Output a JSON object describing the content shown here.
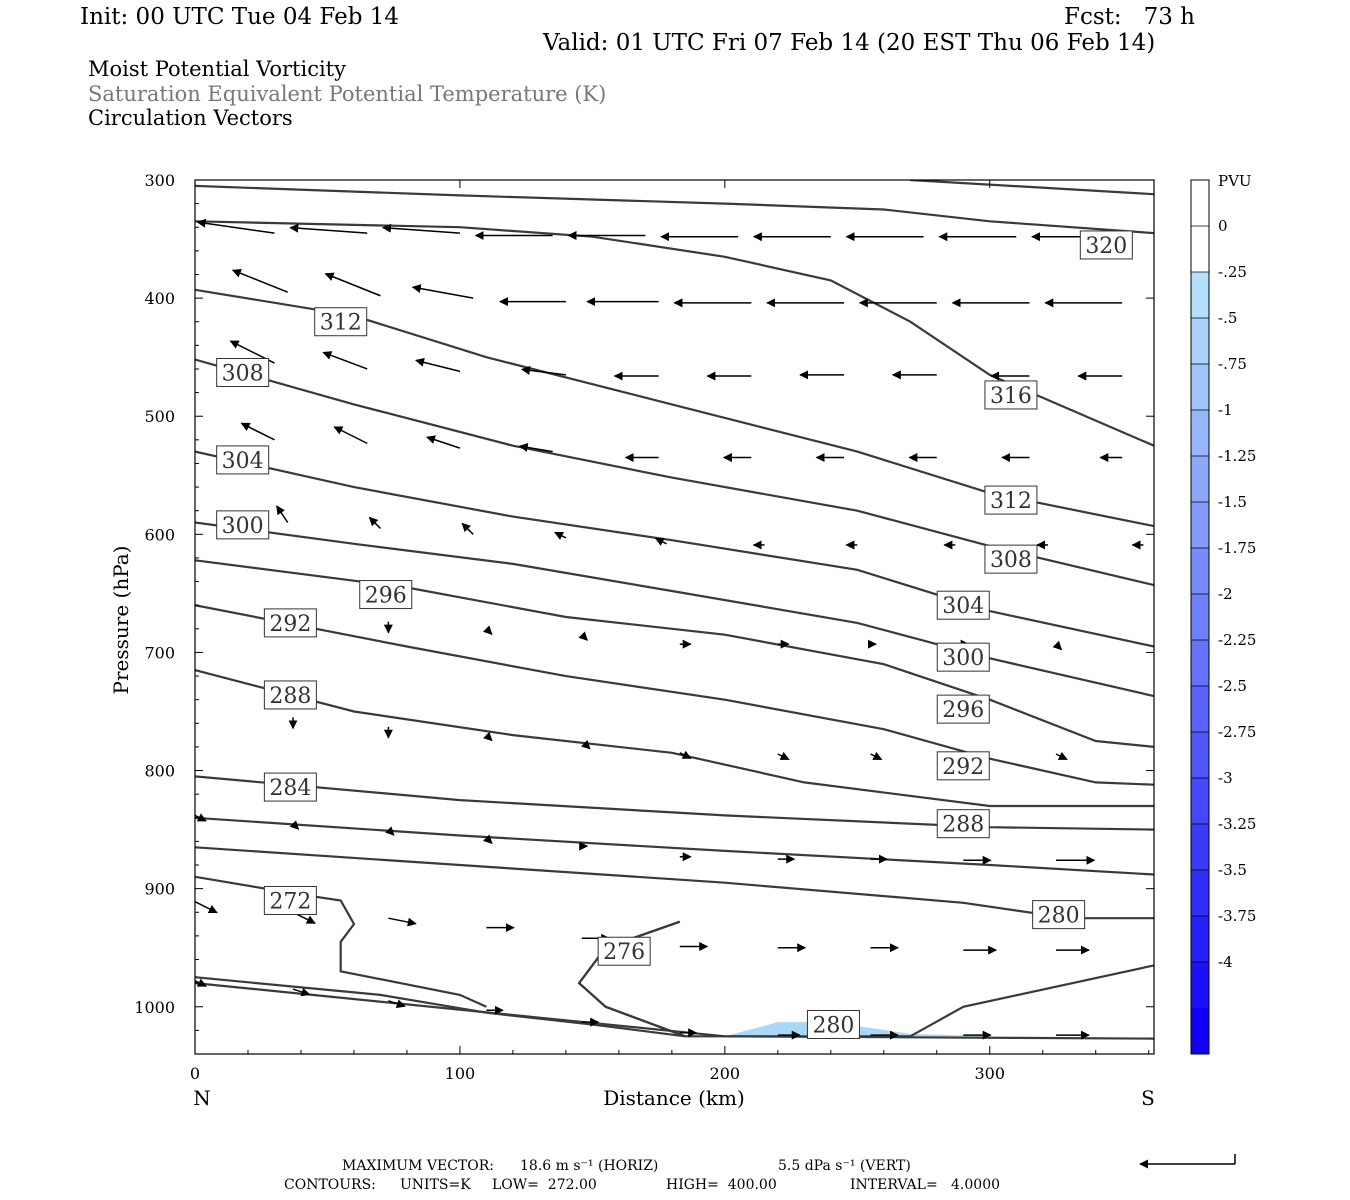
{
  "header": {
    "init": "Init: 00 UTC Tue 04 Feb 14",
    "fcst": "Fcst:   73 h",
    "valid": "Valid: 01 UTC Fri 07 Feb 14 (20 EST Thu 06 Feb 14)"
  },
  "legend": {
    "line1": "Moist Potential Vorticity",
    "line2": "Saturation Equivalent Potential Temperature (K)",
    "line3": "Circulation Vectors"
  },
  "footer": {
    "maxvec_label": "MAXIMUM VECTOR:",
    "horiz": "18.6 m s⁻¹ (HORIZ)",
    "vert": "5.5 dPa s⁻¹ (VERT)",
    "contours_label": "CONTOURS:",
    "units": "UNITS=K",
    "low": "LOW=  272.00",
    "high": "HIGH=  400.00",
    "interval": "INTERVAL=   4.0000"
  },
  "colors": {
    "contour": "#3a3a3a",
    "vector": "#000000",
    "pv_fill": "#a8d8f8"
  },
  "chart_data": {
    "type": "cross-section",
    "xlabel": "Distance (km)",
    "ylabel": "Pressure (hPa)",
    "x_ticks": [
      0,
      100,
      200,
      300
    ],
    "y_ticks": [
      300,
      400,
      500,
      600,
      700,
      800,
      900,
      1000
    ],
    "xlim": [
      0,
      362
    ],
    "ylim": [
      1040,
      300
    ],
    "end_labels": {
      "left": "N",
      "right": "S"
    },
    "colorbar": {
      "title": "PVU",
      "levels": [
        "0",
        "-.25",
        "-.5",
        "-.75",
        "-1",
        "-1.25",
        "-1.5",
        "-1.75",
        "-2",
        "-2.25",
        "-2.5",
        "-2.75",
        "-3",
        "-3.25",
        "-3.5",
        "-3.75",
        "-4"
      ],
      "colors": [
        "#ffffff",
        "#ffffff",
        "#b4e0fc",
        "#aad2fb",
        "#a0c5fb",
        "#96b7fb",
        "#8ca8fb",
        "#829bfb",
        "#778cfb",
        "#6d7ffb",
        "#6371fb",
        "#5963fb",
        "#4e55fb",
        "#4447fb",
        "#3a3afb",
        "#302cfb",
        "#251ffb",
        "#1a10fb",
        "#0f00fb"
      ]
    },
    "contours": [
      {
        "value": "",
        "points": [
          [
            270,
            300
          ],
          [
            362,
            312
          ]
        ]
      },
      {
        "value": "320",
        "points": [
          [
            0,
            305
          ],
          [
            100,
            313
          ],
          [
            200,
            320
          ],
          [
            260,
            325
          ],
          [
            300,
            335
          ],
          [
            362,
            345
          ]
        ]
      },
      {
        "value": "316",
        "points": [
          [
            0,
            335
          ],
          [
            100,
            340
          ],
          [
            150,
            348
          ],
          [
            200,
            365
          ],
          [
            240,
            385
          ],
          [
            270,
            420
          ],
          [
            300,
            465
          ],
          [
            362,
            525
          ]
        ]
      },
      {
        "value": "312",
        "points": [
          [
            0,
            393
          ],
          [
            60,
            415
          ],
          [
            110,
            450
          ],
          [
            180,
            490
          ],
          [
            250,
            530
          ],
          [
            300,
            565
          ],
          [
            362,
            593
          ]
        ]
      },
      {
        "value": "308",
        "points": [
          [
            0,
            452
          ],
          [
            60,
            490
          ],
          [
            120,
            525
          ],
          [
            180,
            552
          ],
          [
            250,
            580
          ],
          [
            300,
            610
          ],
          [
            362,
            643
          ]
        ]
      },
      {
        "value": "304",
        "points": [
          [
            0,
            530
          ],
          [
            60,
            560
          ],
          [
            120,
            585
          ],
          [
            180,
            605
          ],
          [
            250,
            630
          ],
          [
            300,
            665
          ],
          [
            362,
            695
          ]
        ]
      },
      {
        "value": "300",
        "points": [
          [
            0,
            590
          ],
          [
            60,
            608
          ],
          [
            120,
            625
          ],
          [
            180,
            648
          ],
          [
            250,
            675
          ],
          [
            300,
            705
          ],
          [
            362,
            737
          ]
        ]
      },
      {
        "value": "296",
        "points": [
          [
            0,
            622
          ],
          [
            80,
            645
          ],
          [
            140,
            670
          ],
          [
            200,
            685
          ],
          [
            260,
            710
          ],
          [
            300,
            740
          ],
          [
            340,
            775
          ],
          [
            362,
            780
          ]
        ]
      },
      {
        "value": "292",
        "points": [
          [
            0,
            660
          ],
          [
            80,
            695
          ],
          [
            140,
            720
          ],
          [
            200,
            740
          ],
          [
            260,
            765
          ],
          [
            300,
            790
          ],
          [
            340,
            810
          ],
          [
            362,
            812
          ]
        ]
      },
      {
        "value": "288",
        "points": [
          [
            0,
            715
          ],
          [
            60,
            750
          ],
          [
            120,
            770
          ],
          [
            180,
            785
          ],
          [
            230,
            810
          ],
          [
            300,
            830
          ],
          [
            362,
            830
          ]
        ]
      },
      {
        "value": "284",
        "points": [
          [
            0,
            805
          ],
          [
            100,
            825
          ],
          [
            200,
            838
          ],
          [
            300,
            848
          ],
          [
            362,
            850
          ]
        ]
      },
      {
        "value": "",
        "points": [
          [
            0,
            840
          ],
          [
            100,
            855
          ],
          [
            200,
            868
          ],
          [
            300,
            880
          ],
          [
            362,
            888
          ]
        ]
      },
      {
        "value": "280",
        "points": [
          [
            0,
            865
          ],
          [
            100,
            880
          ],
          [
            200,
            895
          ],
          [
            290,
            912
          ],
          [
            330,
            925
          ],
          [
            362,
            925
          ]
        ]
      },
      {
        "value": "272",
        "points": [
          [
            0,
            890
          ],
          [
            40,
            905
          ],
          [
            55,
            910
          ],
          [
            60,
            930
          ],
          [
            55,
            945
          ],
          [
            55,
            970
          ],
          [
            100,
            990
          ],
          [
            110,
            1000
          ]
        ]
      },
      {
        "value": "276",
        "points": [
          [
            0,
            975
          ],
          [
            70,
            990
          ],
          [
            110,
            1005
          ],
          [
            150,
            1015
          ],
          [
            185,
            1025
          ]
        ]
      },
      {
        "value": "",
        "points": [
          [
            183,
            928
          ],
          [
            155,
            950
          ],
          [
            145,
            980
          ],
          [
            155,
            1000
          ],
          [
            185,
            1025
          ]
        ]
      },
      {
        "value": "",
        "points": [
          [
            183,
            928
          ],
          [
            155,
            950
          ],
          [
            145,
            980
          ],
          [
            155,
            1000
          ],
          [
            185,
            1025
          ],
          [
            270,
            1025
          ],
          [
            290,
            1000
          ],
          [
            362,
            965
          ]
        ]
      },
      {
        "value": "",
        "points": [
          [
            0,
            980
          ],
          [
            200,
            1025
          ],
          [
            362,
            1027
          ]
        ]
      }
    ],
    "contour_labels": [
      {
        "text": "320",
        "x": 344,
        "y": 355
      },
      {
        "text": "312",
        "x": 55,
        "y": 420
      },
      {
        "text": "308",
        "x": 18,
        "y": 463
      },
      {
        "text": "316",
        "x": 308,
        "y": 482
      },
      {
        "text": "304",
        "x": 18,
        "y": 537
      },
      {
        "text": "312",
        "x": 308,
        "y": 571
      },
      {
        "text": "300",
        "x": 18,
        "y": 592
      },
      {
        "text": "308",
        "x": 308,
        "y": 621
      },
      {
        "text": "296",
        "x": 72,
        "y": 651
      },
      {
        "text": "304",
        "x": 290,
        "y": 660
      },
      {
        "text": "292",
        "x": 36,
        "y": 675
      },
      {
        "text": "300",
        "x": 290,
        "y": 704
      },
      {
        "text": "288",
        "x": 36,
        "y": 736
      },
      {
        "text": "296",
        "x": 290,
        "y": 748
      },
      {
        "text": "292",
        "x": 290,
        "y": 796
      },
      {
        "text": "284",
        "x": 36,
        "y": 814
      },
      {
        "text": "288",
        "x": 290,
        "y": 845
      },
      {
        "text": "272",
        "x": 36,
        "y": 910
      },
      {
        "text": "280",
        "x": 326,
        "y": 922
      },
      {
        "text": "276",
        "x": 162,
        "y": 953
      },
      {
        "text": "280",
        "x": 241,
        "y": 1015
      }
    ],
    "pv_region": [
      [
        200,
        1025
      ],
      [
        220,
        1013
      ],
      [
        240,
        1013
      ],
      [
        270,
        1023
      ],
      [
        300,
        1025
      ]
    ],
    "vectors": [
      {
        "x": 30,
        "y": 345,
        "u": -14,
        "v": 2
      },
      {
        "x": 65,
        "y": 345,
        "u": -14,
        "v": 1
      },
      {
        "x": 100,
        "y": 345,
        "u": -14,
        "v": 1
      },
      {
        "x": 135,
        "y": 347,
        "u": -14,
        "v": 0
      },
      {
        "x": 170,
        "y": 347,
        "u": -14,
        "v": 0
      },
      {
        "x": 205,
        "y": 348,
        "u": -14,
        "v": 0
      },
      {
        "x": 240,
        "y": 348,
        "u": -14,
        "v": 0
      },
      {
        "x": 275,
        "y": 348,
        "u": -14,
        "v": 0
      },
      {
        "x": 310,
        "y": 348,
        "u": -14,
        "v": 0
      },
      {
        "x": 345,
        "y": 348,
        "u": -14,
        "v": 0
      },
      {
        "x": 35,
        "y": 395,
        "u": -10,
        "v": 4
      },
      {
        "x": 70,
        "y": 398,
        "u": -10,
        "v": 4
      },
      {
        "x": 105,
        "y": 400,
        "u": -11,
        "v": 2
      },
      {
        "x": 140,
        "y": 403,
        "u": -12,
        "v": 0
      },
      {
        "x": 175,
        "y": 403,
        "u": -13,
        "v": 0
      },
      {
        "x": 210,
        "y": 404,
        "u": -14,
        "v": 0
      },
      {
        "x": 245,
        "y": 404,
        "u": -14,
        "v": 0
      },
      {
        "x": 280,
        "y": 404,
        "u": -14,
        "v": 0
      },
      {
        "x": 315,
        "y": 404,
        "u": -14,
        "v": 0
      },
      {
        "x": 350,
        "y": 404,
        "u": -14,
        "v": 0
      },
      {
        "x": 30,
        "y": 455,
        "u": -8,
        "v": 4
      },
      {
        "x": 65,
        "y": 460,
        "u": -8,
        "v": 3
      },
      {
        "x": 100,
        "y": 462,
        "u": -8,
        "v": 2
      },
      {
        "x": 140,
        "y": 465,
        "u": -8,
        "v": 1
      },
      {
        "x": 175,
        "y": 466,
        "u": -8,
        "v": 0
      },
      {
        "x": 210,
        "y": 466,
        "u": -8,
        "v": 0
      },
      {
        "x": 245,
        "y": 465,
        "u": -8,
        "v": 0
      },
      {
        "x": 280,
        "y": 465,
        "u": -8,
        "v": 0
      },
      {
        "x": 315,
        "y": 466,
        "u": -7,
        "v": 0
      },
      {
        "x": 350,
        "y": 466,
        "u": -8,
        "v": 0
      },
      {
        "x": 30,
        "y": 520,
        "u": -6,
        "v": 3
      },
      {
        "x": 65,
        "y": 523,
        "u": -6,
        "v": 3
      },
      {
        "x": 100,
        "y": 527,
        "u": -6,
        "v": 2
      },
      {
        "x": 135,
        "y": 530,
        "u": -6,
        "v": 1
      },
      {
        "x": 175,
        "y": 535,
        "u": -6,
        "v": 0
      },
      {
        "x": 210,
        "y": 535,
        "u": -5,
        "v": 0
      },
      {
        "x": 245,
        "y": 535,
        "u": -5,
        "v": 0
      },
      {
        "x": 280,
        "y": 535,
        "u": -5,
        "v": 0
      },
      {
        "x": 315,
        "y": 535,
        "u": -5,
        "v": 0
      },
      {
        "x": 350,
        "y": 535,
        "u": -4,
        "v": 0
      },
      {
        "x": 35,
        "y": 590,
        "u": -2,
        "v": 3
      },
      {
        "x": 70,
        "y": 595,
        "u": -2,
        "v": 2
      },
      {
        "x": 105,
        "y": 600,
        "u": -2,
        "v": 2
      },
      {
        "x": 140,
        "y": 603,
        "u": -2,
        "v": 1
      },
      {
        "x": 178,
        "y": 608,
        "u": -2,
        "v": 1
      },
      {
        "x": 215,
        "y": 609,
        "u": -2,
        "v": 0
      },
      {
        "x": 250,
        "y": 609,
        "u": -2,
        "v": 0
      },
      {
        "x": 287,
        "y": 609,
        "u": -2,
        "v": 0
      },
      {
        "x": 322,
        "y": 609,
        "u": -2,
        "v": 0
      },
      {
        "x": 358,
        "y": 609,
        "u": -2,
        "v": 0
      },
      {
        "x": 35,
        "y": 670,
        "u": 0,
        "v": -2
      },
      {
        "x": 73,
        "y": 674,
        "u": 0,
        "v": -2
      },
      {
        "x": 110,
        "y": 680,
        "u": 1,
        "v": -1
      },
      {
        "x": 146,
        "y": 685,
        "u": 1,
        "v": -1
      },
      {
        "x": 183,
        "y": 693,
        "u": 2,
        "v": 0
      },
      {
        "x": 220,
        "y": 693,
        "u": 2,
        "v": 0
      },
      {
        "x": 255,
        "y": 693,
        "u": 1,
        "v": 0
      },
      {
        "x": 290,
        "y": 693,
        "u": 1,
        "v": 0
      },
      {
        "x": 325,
        "y": 693,
        "u": 1,
        "v": -1
      },
      {
        "x": 37,
        "y": 755,
        "u": 0,
        "v": -2
      },
      {
        "x": 73,
        "y": 763,
        "u": 0,
        "v": -2
      },
      {
        "x": 110,
        "y": 770,
        "u": 1,
        "v": -1
      },
      {
        "x": 147,
        "y": 777,
        "u": 1,
        "v": -1
      },
      {
        "x": 183,
        "y": 785,
        "u": 2,
        "v": -1
      },
      {
        "x": 220,
        "y": 786,
        "u": 2,
        "v": -1
      },
      {
        "x": 255,
        "y": 786,
        "u": 2,
        "v": -1
      },
      {
        "x": 290,
        "y": 786,
        "u": 2,
        "v": -1
      },
      {
        "x": 325,
        "y": 786,
        "u": 2,
        "v": -1
      },
      {
        "x": 0,
        "y": 838,
        "u": 2,
        "v": -1
      },
      {
        "x": 37,
        "y": 845,
        "u": 1,
        "v": -1
      },
      {
        "x": 73,
        "y": 850,
        "u": 1,
        "v": -1
      },
      {
        "x": 110,
        "y": 857,
        "u": 1,
        "v": -1
      },
      {
        "x": 146,
        "y": 864,
        "u": 1,
        "v": 0
      },
      {
        "x": 183,
        "y": 873,
        "u": 2,
        "v": 0
      },
      {
        "x": 220,
        "y": 875,
        "u": 3,
        "v": 0
      },
      {
        "x": 255,
        "y": 875,
        "u": 3,
        "v": 0
      },
      {
        "x": 290,
        "y": 876,
        "u": 5,
        "v": 0
      },
      {
        "x": 325,
        "y": 876,
        "u": 7,
        "v": 0
      },
      {
        "x": 0,
        "y": 911,
        "u": 4,
        "v": -2
      },
      {
        "x": 37,
        "y": 920,
        "u": 4,
        "v": -2
      },
      {
        "x": 73,
        "y": 925,
        "u": 5,
        "v": -1
      },
      {
        "x": 110,
        "y": 933,
        "u": 5,
        "v": 0
      },
      {
        "x": 146,
        "y": 942,
        "u": 5,
        "v": 0
      },
      {
        "x": 183,
        "y": 949,
        "u": 5,
        "v": 0
      },
      {
        "x": 220,
        "y": 950,
        "u": 5,
        "v": 0
      },
      {
        "x": 255,
        "y": 950,
        "u": 5,
        "v": 0
      },
      {
        "x": 290,
        "y": 952,
        "u": 6,
        "v": 0
      },
      {
        "x": 325,
        "y": 952,
        "u": 6,
        "v": 0
      },
      {
        "x": 0,
        "y": 978,
        "u": 2,
        "v": -1
      },
      {
        "x": 37,
        "y": 985,
        "u": 3,
        "v": -1
      },
      {
        "x": 73,
        "y": 995,
        "u": 3,
        "v": -1
      },
      {
        "x": 110,
        "y": 1003,
        "u": 3,
        "v": 0
      },
      {
        "x": 146,
        "y": 1013,
        "u": 3,
        "v": 0
      },
      {
        "x": 183,
        "y": 1022,
        "u": 3,
        "v": 0
      },
      {
        "x": 220,
        "y": 1024,
        "u": 4,
        "v": 0
      },
      {
        "x": 255,
        "y": 1024,
        "u": 5,
        "v": 0
      },
      {
        "x": 290,
        "y": 1024,
        "u": 5,
        "v": 0
      },
      {
        "x": 325,
        "y": 1024,
        "u": 6,
        "v": 0
      }
    ]
  }
}
